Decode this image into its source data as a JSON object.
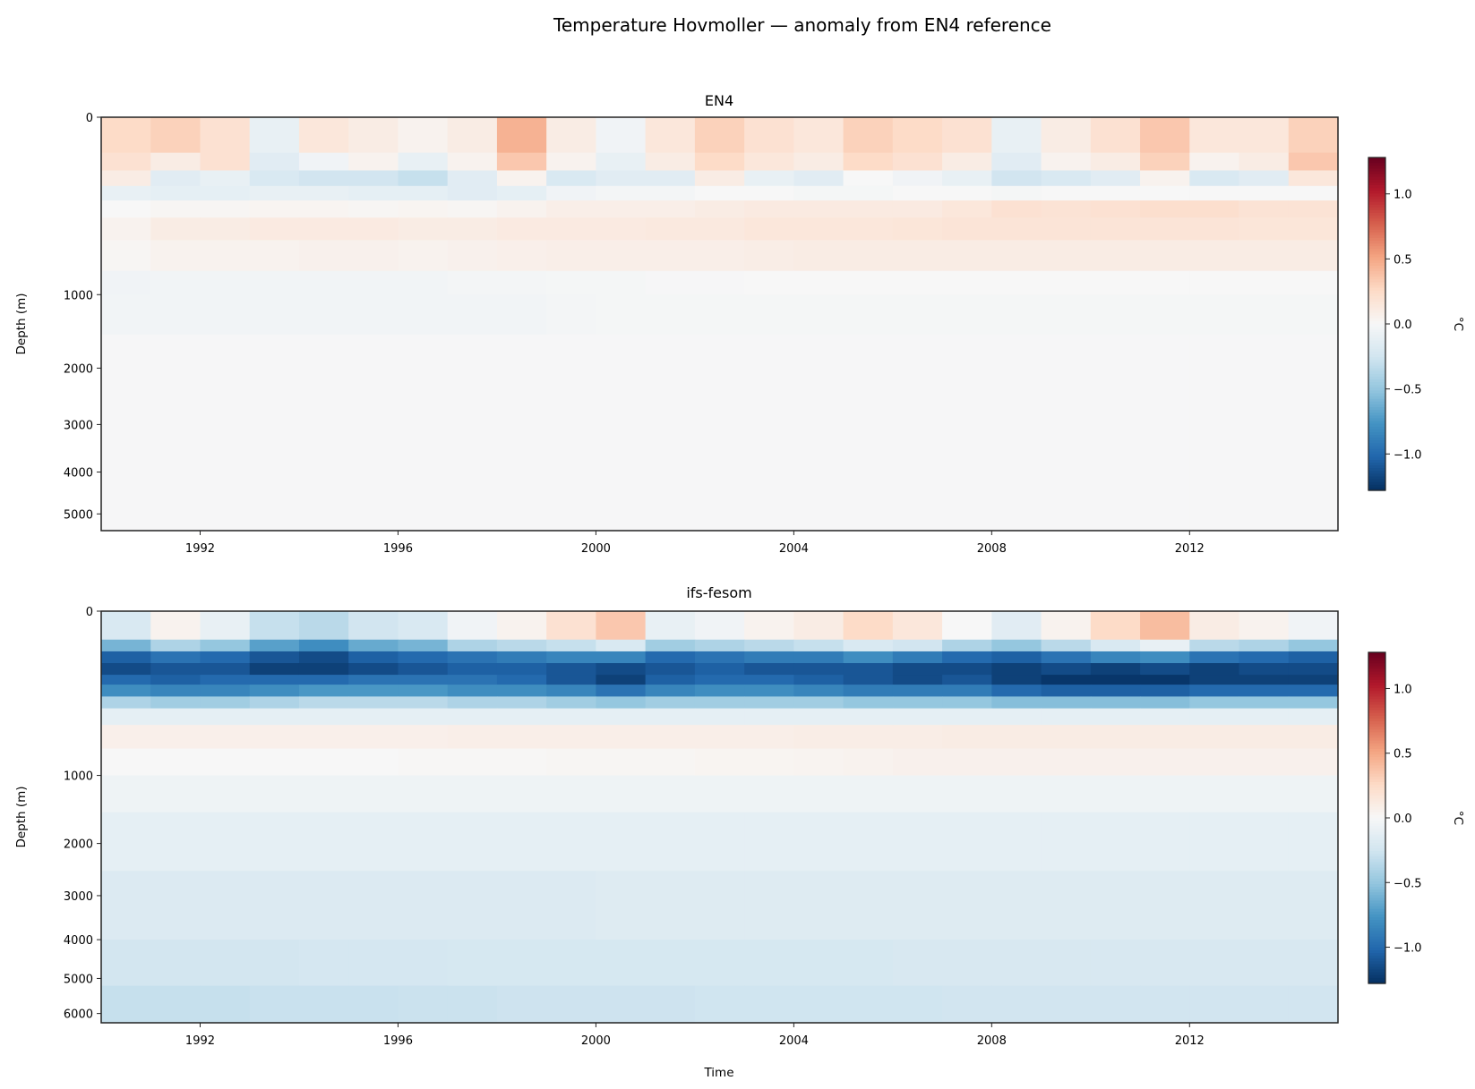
{
  "figure": {
    "title": "Temperature Hovmoller — anomaly from EN4 reference"
  },
  "chart_data": [
    {
      "type": "heatmap",
      "title": "EN4",
      "xlabel": "",
      "ylabel": "Depth (m)",
      "xlim": [
        1990,
        2015
      ],
      "ylim": [
        5430,
        0
      ],
      "yscale": "sqrt",
      "x_ticks": [
        "1992",
        "1996",
        "2000",
        "2004",
        "2008",
        "2012"
      ],
      "x_tick_values": [
        1992,
        1996,
        2000,
        2004,
        2008,
        2012
      ],
      "y_ticks": [
        "0",
        "1000",
        "2000",
        "3000",
        "4000",
        "5000"
      ],
      "y_tick_values": [
        0,
        1000,
        2000,
        3000,
        4000,
        5000
      ],
      "colormap": "RdBu_r",
      "vmin": -1.28,
      "vmax": 1.28,
      "colorbar": {
        "label": "°C",
        "ticks": [
          "−1.0",
          "−0.5",
          "0.0",
          "0.5",
          "1.0"
        ],
        "tick_values": [
          -1.0,
          -0.5,
          0.0,
          0.5,
          1.0
        ]
      },
      "years": [
        1990,
        1991,
        1992,
        1993,
        1994,
        1995,
        1996,
        1997,
        1998,
        1999,
        2000,
        2001,
        2002,
        2003,
        2004,
        2005,
        2006,
        2007,
        2008,
        2009,
        2010,
        2011,
        2012,
        2013,
        2014
      ],
      "depth_edges": [
        0,
        40,
        90,
        150,
        220,
        320,
        480,
        750,
        1000,
        1500,
        2500,
        4000,
        5430
      ],
      "values": [
        [
          0.25,
          0.3,
          0.2,
          -0.1,
          0.15,
          0.1,
          0.05,
          0.1,
          0.45,
          0.1,
          -0.05,
          0.15,
          0.3,
          0.2,
          0.15,
          0.3,
          0.25,
          0.2,
          -0.1,
          0.1,
          0.2,
          0.35,
          0.15,
          0.15,
          0.3
        ],
        [
          0.2,
          0.1,
          0.2,
          -0.15,
          -0.05,
          0.05,
          -0.1,
          0.05,
          0.35,
          0.05,
          -0.1,
          0.1,
          0.25,
          0.15,
          0.1,
          0.25,
          0.2,
          0.1,
          -0.15,
          0.05,
          0.1,
          0.3,
          0.05,
          0.1,
          0.35
        ],
        [
          0.1,
          -0.15,
          -0.1,
          -0.2,
          -0.25,
          -0.25,
          -0.3,
          -0.15,
          0.05,
          -0.2,
          -0.15,
          -0.15,
          0.1,
          -0.1,
          -0.15,
          0.0,
          -0.05,
          -0.1,
          -0.25,
          -0.2,
          -0.15,
          0.05,
          -0.2,
          -0.15,
          0.15
        ],
        [
          -0.1,
          -0.12,
          -0.12,
          -0.1,
          -0.1,
          -0.12,
          -0.12,
          -0.15,
          -0.12,
          -0.05,
          -0.03,
          -0.03,
          0,
          0,
          -0.02,
          -0.02,
          0,
          0,
          -0.02,
          0,
          0,
          0,
          0,
          0,
          0
        ],
        [
          0,
          0.02,
          0.02,
          0.03,
          0.03,
          0.02,
          0.03,
          0.02,
          0.05,
          0.08,
          0.08,
          0.08,
          0.1,
          0.12,
          0.12,
          0.12,
          0.12,
          0.15,
          0.2,
          0.18,
          0.2,
          0.22,
          0.22,
          0.18,
          0.18
        ],
        [
          0.05,
          0.1,
          0.1,
          0.12,
          0.12,
          0.12,
          0.1,
          0.1,
          0.12,
          0.12,
          0.12,
          0.13,
          0.13,
          0.15,
          0.15,
          0.15,
          0.16,
          0.17,
          0.17,
          0.17,
          0.17,
          0.17,
          0.17,
          0.16,
          0.16
        ],
        [
          0.02,
          0.05,
          0.05,
          0.05,
          0.06,
          0.06,
          0.05,
          0.06,
          0.07,
          0.08,
          0.08,
          0.08,
          0.08,
          0.09,
          0.1,
          0.1,
          0.1,
          0.1,
          0.1,
          0.1,
          0.1,
          0.1,
          0.1,
          0.1,
          0.1
        ],
        [
          -0.05,
          -0.04,
          -0.04,
          -0.04,
          -0.04,
          -0.04,
          -0.04,
          -0.03,
          -0.03,
          -0.02,
          -0.02,
          -0.01,
          -0.01,
          0,
          0,
          0,
          0,
          0,
          0,
          0,
          0,
          0,
          0,
          0,
          0
        ],
        [
          -0.04,
          -0.04,
          -0.04,
          -0.04,
          -0.04,
          -0.04,
          -0.04,
          -0.04,
          -0.04,
          -0.03,
          -0.02,
          -0.02,
          -0.02,
          -0.02,
          -0.02,
          -0.02,
          -0.02,
          -0.02,
          -0.02,
          -0.02,
          -0.02,
          -0.02,
          -0.02,
          -0.02,
          -0.02
        ],
        [
          -0.01,
          -0.01,
          -0.01,
          -0.01,
          -0.01,
          -0.01,
          -0.01,
          -0.01,
          -0.01,
          -0.01,
          -0.01,
          -0.01,
          -0.01,
          -0.01,
          -0.01,
          -0.01,
          -0.01,
          -0.01,
          -0.01,
          -0.01,
          -0.01,
          -0.01,
          -0.01,
          -0.01,
          -0.01
        ],
        [
          -0.01,
          -0.01,
          -0.01,
          -0.01,
          -0.01,
          -0.01,
          -0.01,
          -0.01,
          -0.01,
          -0.01,
          -0.01,
          -0.01,
          -0.01,
          -0.01,
          -0.01,
          -0.01,
          -0.01,
          -0.01,
          -0.01,
          -0.01,
          -0.01,
          -0.01,
          -0.01,
          -0.01,
          -0.01
        ],
        [
          -0.01,
          -0.01,
          -0.01,
          -0.01,
          -0.01,
          -0.01,
          -0.01,
          -0.01,
          -0.01,
          -0.01,
          -0.01,
          -0.01,
          -0.01,
          -0.01,
          -0.01,
          -0.01,
          -0.01,
          -0.01,
          -0.01,
          -0.01,
          -0.01,
          -0.01,
          -0.01,
          -0.01,
          -0.01
        ]
      ]
    },
    {
      "type": "heatmap",
      "title": "ifs-fesom",
      "xlabel": "Time",
      "ylabel": "Depth (m)",
      "xlim": [
        1990,
        2015
      ],
      "ylim": [
        6280,
        0
      ],
      "yscale": "sqrt",
      "x_ticks": [
        "1992",
        "1996",
        "2000",
        "2004",
        "2008",
        "2012"
      ],
      "x_tick_values": [
        1992,
        1996,
        2000,
        2004,
        2008,
        2012
      ],
      "y_ticks": [
        "0",
        "1000",
        "2000",
        "3000",
        "4000",
        "5000",
        "6000"
      ],
      "y_tick_values": [
        0,
        1000,
        2000,
        3000,
        4000,
        5000,
        6000
      ],
      "colormap": "RdBu_r",
      "vmin": -1.28,
      "vmax": 1.28,
      "colorbar": {
        "label": "°C",
        "ticks": [
          "−1.0",
          "−0.5",
          "0.0",
          "0.5",
          "1.0"
        ],
        "tick_values": [
          -1.0,
          -0.5,
          0.0,
          0.5,
          1.0
        ]
      },
      "years": [
        1990,
        1991,
        1992,
        1993,
        1994,
        1995,
        1996,
        1997,
        1998,
        1999,
        2000,
        2001,
        2002,
        2003,
        2004,
        2005,
        2006,
        2007,
        2008,
        2009,
        2010,
        2011,
        2012,
        2013,
        2014
      ],
      "depth_edges": [
        0,
        30,
        60,
        100,
        150,
        200,
        270,
        350,
        480,
        700,
        1000,
        1500,
        2500,
        4000,
        5200,
        6280
      ],
      "values": [
        [
          -0.2,
          0.05,
          -0.1,
          -0.3,
          -0.35,
          -0.25,
          -0.2,
          -0.05,
          0.05,
          0.2,
          0.35,
          -0.1,
          -0.05,
          0.05,
          0.1,
          0.25,
          0.15,
          0.0,
          -0.15,
          0.05,
          0.25,
          0.4,
          0.1,
          0.05,
          -0.05
        ],
        [
          -0.6,
          -0.4,
          -0.5,
          -0.7,
          -0.8,
          -0.65,
          -0.6,
          -0.4,
          -0.35,
          -0.3,
          -0.2,
          -0.45,
          -0.4,
          -0.35,
          -0.3,
          -0.2,
          -0.25,
          -0.4,
          -0.5,
          -0.35,
          -0.2,
          -0.1,
          -0.35,
          -0.4,
          -0.5
        ],
        [
          -1.05,
          -0.95,
          -1.0,
          -1.1,
          -1.15,
          -1.05,
          -1.0,
          -0.95,
          -0.9,
          -0.85,
          -0.85,
          -1.0,
          -0.95,
          -0.9,
          -0.9,
          -0.8,
          -0.9,
          -1.0,
          -1.05,
          -0.95,
          -0.85,
          -0.8,
          -0.95,
          -1.0,
          -1.05
        ],
        [
          -1.15,
          -1.1,
          -1.1,
          -1.2,
          -1.2,
          -1.15,
          -1.1,
          -1.05,
          -1.05,
          -1.1,
          -1.15,
          -1.1,
          -1.05,
          -1.1,
          -1.1,
          -1.1,
          -1.15,
          -1.15,
          -1.2,
          -1.15,
          -1.2,
          -1.15,
          -1.2,
          -1.15,
          -1.15
        ],
        [
          -1.0,
          -1.05,
          -1.0,
          -1.0,
          -1.0,
          -0.95,
          -0.95,
          -0.95,
          -1.0,
          -1.1,
          -1.2,
          -1.05,
          -1.0,
          -1.0,
          -1.05,
          -1.1,
          -1.15,
          -1.1,
          -1.2,
          -1.25,
          -1.25,
          -1.25,
          -1.2,
          -1.2,
          -1.2
        ],
        [
          -0.8,
          -0.85,
          -0.85,
          -0.8,
          -0.75,
          -0.75,
          -0.75,
          -0.8,
          -0.8,
          -0.85,
          -0.95,
          -0.85,
          -0.8,
          -0.8,
          -0.85,
          -0.9,
          -0.9,
          -0.9,
          -1.0,
          -1.05,
          -1.05,
          -1.05,
          -1.0,
          -1.0,
          -1.0
        ],
        [
          -0.4,
          -0.45,
          -0.45,
          -0.4,
          -0.35,
          -0.35,
          -0.35,
          -0.4,
          -0.4,
          -0.45,
          -0.5,
          -0.45,
          -0.45,
          -0.45,
          -0.45,
          -0.5,
          -0.5,
          -0.5,
          -0.55,
          -0.55,
          -0.55,
          -0.55,
          -0.5,
          -0.5,
          -0.5
        ],
        [
          -0.12,
          -0.12,
          -0.12,
          -0.12,
          -0.12,
          -0.12,
          -0.12,
          -0.12,
          -0.12,
          -0.12,
          -0.12,
          -0.12,
          -0.12,
          -0.12,
          -0.12,
          -0.12,
          -0.12,
          -0.12,
          -0.12,
          -0.12,
          -0.12,
          -0.12,
          -0.12,
          -0.12,
          -0.12
        ],
        [
          0.07,
          0.07,
          0.07,
          0.07,
          0.07,
          0.07,
          0.07,
          0.08,
          0.08,
          0.08,
          0.08,
          0.08,
          0.08,
          0.08,
          0.09,
          0.09,
          0.09,
          0.1,
          0.1,
          0.1,
          0.1,
          0.1,
          0.1,
          0.1,
          0.1
        ],
        [
          0.0,
          0.0,
          0.0,
          0.0,
          0.0,
          0.0,
          0.01,
          0.01,
          0.01,
          0.02,
          0.02,
          0.02,
          0.03,
          0.03,
          0.04,
          0.05,
          0.06,
          0.06,
          0.06,
          0.06,
          0.06,
          0.06,
          0.06,
          0.06,
          0.06
        ],
        [
          -0.06,
          -0.06,
          -0.06,
          -0.06,
          -0.06,
          -0.06,
          -0.06,
          -0.06,
          -0.06,
          -0.06,
          -0.06,
          -0.06,
          -0.06,
          -0.06,
          -0.06,
          -0.06,
          -0.06,
          -0.06,
          -0.06,
          -0.06,
          -0.06,
          -0.06,
          -0.06,
          -0.06,
          -0.06
        ],
        [
          -0.12,
          -0.12,
          -0.12,
          -0.12,
          -0.12,
          -0.12,
          -0.12,
          -0.12,
          -0.12,
          -0.12,
          -0.12,
          -0.12,
          -0.12,
          -0.12,
          -0.12,
          -0.12,
          -0.12,
          -0.12,
          -0.12,
          -0.12,
          -0.12,
          -0.12,
          -0.12,
          -0.12,
          -0.12
        ],
        [
          -0.18,
          -0.18,
          -0.18,
          -0.18,
          -0.18,
          -0.18,
          -0.18,
          -0.18,
          -0.18,
          -0.18,
          -0.17,
          -0.17,
          -0.17,
          -0.17,
          -0.17,
          -0.17,
          -0.17,
          -0.17,
          -0.17,
          -0.17,
          -0.17,
          -0.17,
          -0.17,
          -0.17,
          -0.17
        ],
        [
          -0.24,
          -0.24,
          -0.24,
          -0.24,
          -0.23,
          -0.23,
          -0.23,
          -0.22,
          -0.22,
          -0.22,
          -0.22,
          -0.22,
          -0.22,
          -0.22,
          -0.22,
          -0.22,
          -0.21,
          -0.21,
          -0.21,
          -0.21,
          -0.21,
          -0.21,
          -0.21,
          -0.21,
          -0.21
        ],
        [
          -0.3,
          -0.3,
          -0.3,
          -0.29,
          -0.29,
          -0.29,
          -0.28,
          -0.28,
          -0.27,
          -0.27,
          -0.27,
          -0.27,
          -0.26,
          -0.26,
          -0.26,
          -0.26,
          -0.26,
          -0.25,
          -0.25,
          -0.25,
          -0.25,
          -0.25,
          -0.25,
          -0.25,
          -0.25
        ]
      ]
    }
  ]
}
